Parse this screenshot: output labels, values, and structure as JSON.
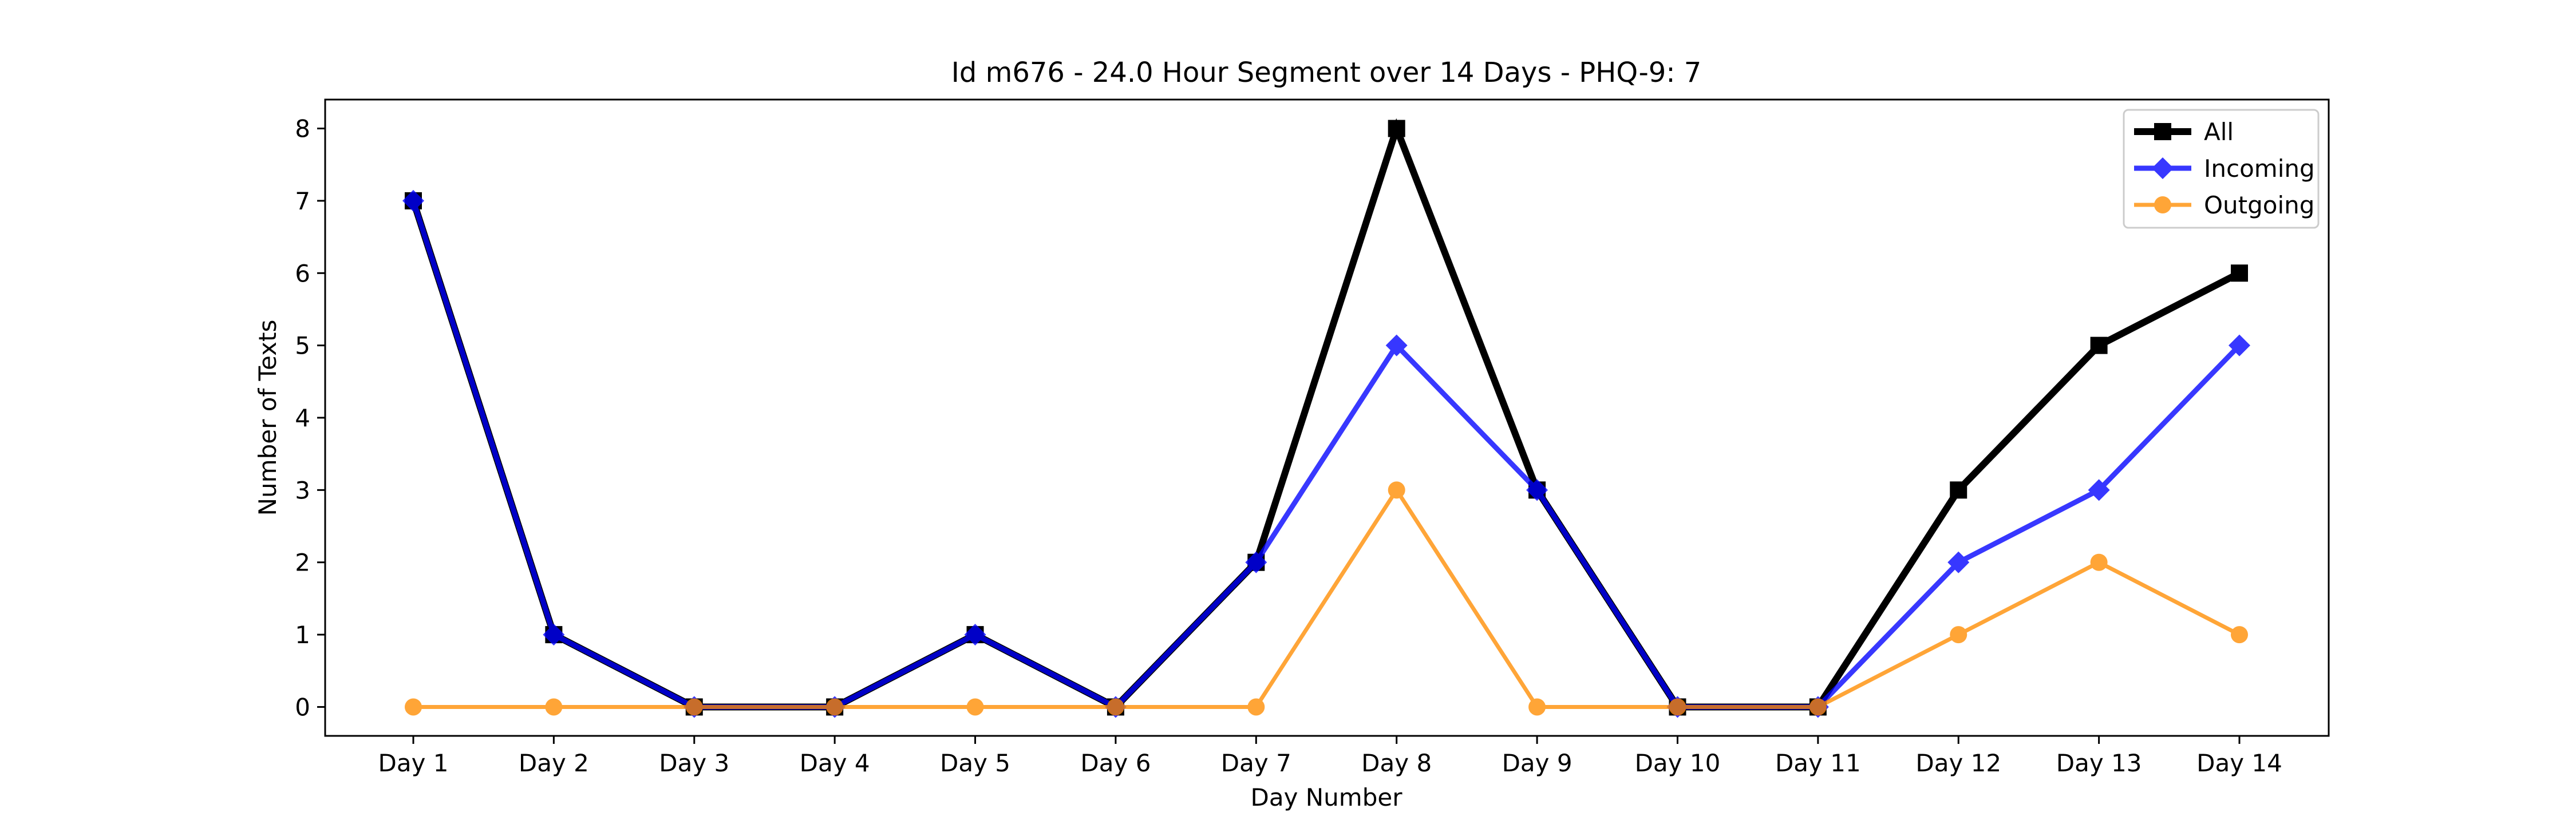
{
  "chart_data": {
    "type": "line",
    "title": "Id m676 - 24.0 Hour Segment over 14 Days - PHQ-9: 7",
    "xlabel": "Day Number",
    "ylabel": "Number of Texts",
    "categories": [
      "Day 1",
      "Day 2",
      "Day 3",
      "Day 4",
      "Day 5",
      "Day 6",
      "Day 7",
      "Day 8",
      "Day 9",
      "Day 10",
      "Day 11",
      "Day 12",
      "Day 13",
      "Day 14"
    ],
    "ylim": [
      -0.4,
      8.4
    ],
    "yticks": [
      0,
      1,
      2,
      3,
      4,
      5,
      6,
      7,
      8
    ],
    "grid": false,
    "legend": "top-right",
    "series": [
      {
        "name": "All",
        "color": "#000000",
        "marker": "square",
        "values": [
          7,
          1,
          0,
          0,
          1,
          0,
          2,
          8,
          3,
          0,
          0,
          3,
          5,
          6
        ]
      },
      {
        "name": "Incoming",
        "color": "#0000ff",
        "marker": "diamond",
        "values": [
          7,
          1,
          0,
          0,
          1,
          0,
          2,
          5,
          3,
          0,
          0,
          2,
          3,
          5
        ]
      },
      {
        "name": "Outgoing",
        "color": "#ff8c00",
        "marker": "circle",
        "values": [
          0,
          0,
          0,
          0,
          0,
          0,
          0,
          3,
          0,
          0,
          0,
          1,
          2,
          1
        ]
      }
    ]
  }
}
